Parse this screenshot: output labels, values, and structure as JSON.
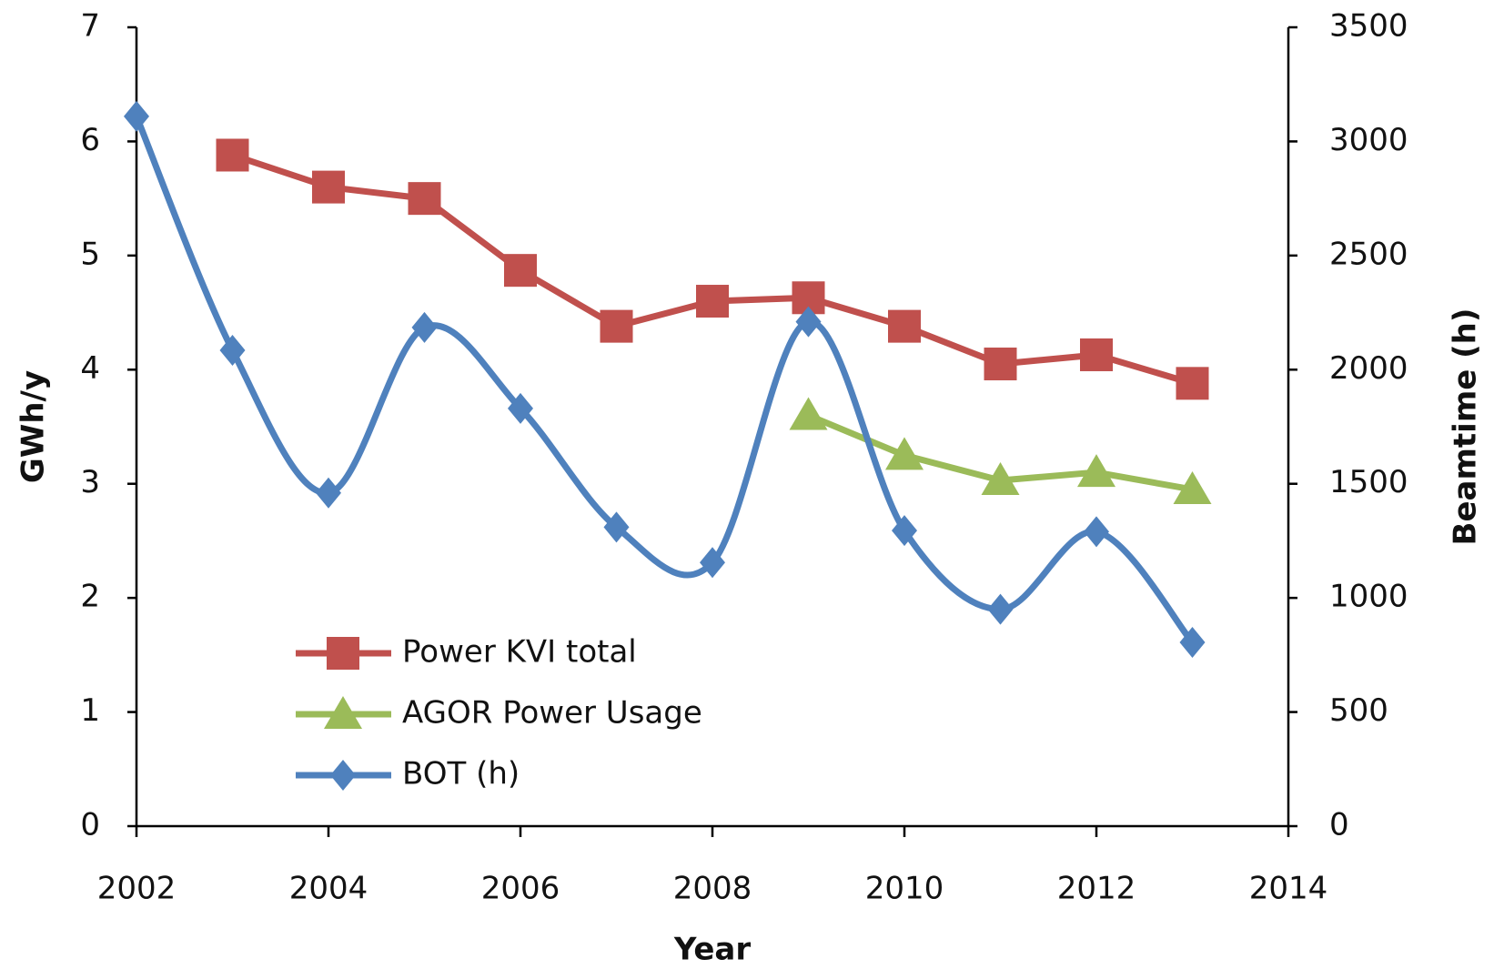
{
  "chart_data": {
    "type": "line",
    "x_label": "Year",
    "y_label": "GWh/y",
    "y2_label": "Beamtime (h)",
    "x": [
      2002,
      2003,
      2004,
      2005,
      2006,
      2007,
      2008,
      2009,
      2010,
      2011,
      2012,
      2013
    ],
    "xlim": [
      2002,
      2014
    ],
    "xticks": [
      2002,
      2004,
      2006,
      2008,
      2010,
      2012,
      2014
    ],
    "ylim": [
      0,
      7
    ],
    "yticks": [
      0,
      1,
      2,
      3,
      4,
      5,
      6,
      7
    ],
    "y2lim": [
      0,
      3500
    ],
    "y2ticks": [
      0,
      500,
      1000,
      1500,
      2000,
      2500,
      3000,
      3500
    ],
    "legend": "lower left",
    "grid": false,
    "series": [
      {
        "name": "Power KVI total",
        "color": "#c0504d",
        "marker": "square",
        "values": [
          null,
          5.88,
          5.6,
          5.5,
          4.87,
          4.38,
          4.6,
          4.63,
          4.38,
          4.05,
          4.13,
          3.88
        ]
      },
      {
        "name": "AGOR Power Usage",
        "color": "#9bbb59",
        "marker": "triangle",
        "values": [
          null,
          null,
          null,
          null,
          null,
          null,
          null,
          3.6,
          3.25,
          3.03,
          3.1,
          2.95
        ]
      },
      {
        "name": "BOT (h)",
        "color": "#4f81bd",
        "marker": "diamond",
        "axis": "y2",
        "smooth": true,
        "values": [
          3110,
          2085,
          1460,
          2185,
          1830,
          1310,
          1155,
          2210,
          1295,
          950,
          1290,
          805
        ]
      }
    ]
  }
}
